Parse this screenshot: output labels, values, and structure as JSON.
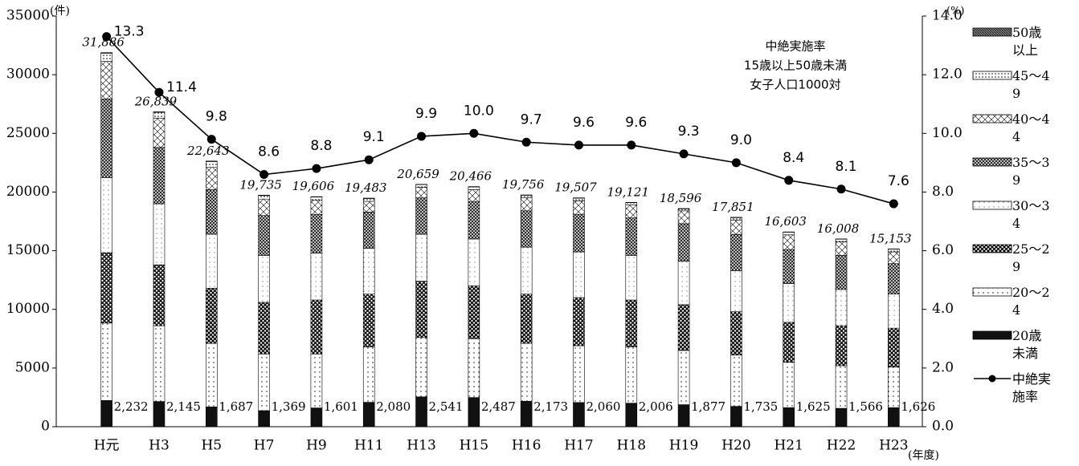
{
  "chart_data": {
    "type": "bar",
    "categories": [
      "H元",
      "H3",
      "H5",
      "H7",
      "H9",
      "H11",
      "H13",
      "H15",
      "H16",
      "H17",
      "H18",
      "H19",
      "H20",
      "H21",
      "H22",
      "H23"
    ],
    "x_label": "(年度)",
    "y_label": "(件)",
    "y2_label": "(%)",
    "annotation": [
      "中絶実施率",
      "15歳以上50歳未満",
      "女子人口1000対"
    ],
    "ylim": [
      0,
      35000
    ],
    "yticks": [
      0,
      5000,
      10000,
      15000,
      20000,
      25000,
      30000,
      35000
    ],
    "y2lim": [
      0,
      14
    ],
    "y2ticks": [
      {
        "value": 0,
        "label": "0.0"
      },
      {
        "value": 2,
        "label": "2.0"
      },
      {
        "value": 4,
        "label": "4.0"
      },
      {
        "value": 6,
        "label": "6.0"
      },
      {
        "value": 8,
        "label": "8.0"
      },
      {
        "value": 10,
        "label": "10.0"
      },
      {
        "value": 12,
        "label": "12.0"
      },
      {
        "value": 14,
        "label": "14.0"
      }
    ],
    "series": [
      {
        "name": "20歳未満",
        "color": "#111111",
        "values": [
          2232,
          2145,
          1687,
          1369,
          1601,
          2080,
          2541,
          2487,
          2173,
          2060,
          2006,
          1877,
          1735,
          1625,
          1566,
          1626
        ],
        "value_labels": [
          "2,232",
          "2,145",
          "1,687",
          "1,369",
          "1,601",
          "2,080",
          "2,541",
          "2,487",
          "2,173",
          "2,060",
          "2,006",
          "1,877",
          "1,735",
          "1,625",
          "1,566",
          "1,626"
        ]
      },
      {
        "name": "20～24",
        "color": "#ffffff",
        "values": [
          6600,
          6455,
          5413,
          4831,
          4599,
          4720,
          5059,
          5013,
          4927,
          4840,
          4794,
          4623,
          4365,
          3875,
          3634,
          3474
        ]
      },
      {
        "name": "25～29",
        "color": "#666666",
        "values": [
          6000,
          5200,
          4700,
          4400,
          4600,
          4500,
          4800,
          4500,
          4200,
          4100,
          4000,
          3900,
          3700,
          3400,
          3400,
          3300
        ]
      },
      {
        "name": "30～34",
        "color": "#f4f4f4",
        "values": [
          6400,
          5200,
          4600,
          4000,
          4000,
          3900,
          4000,
          4000,
          4000,
          3900,
          3800,
          3700,
          3500,
          3300,
          3100,
          2900
        ]
      },
      {
        "name": "35～39",
        "color": "#777777",
        "values": [
          6700,
          4800,
          3800,
          3400,
          3300,
          3100,
          3100,
          3200,
          3100,
          3200,
          3200,
          3200,
          3100,
          2900,
          2900,
          2600
        ]
      },
      {
        "name": "40～44",
        "color": "#dddddd",
        "values": [
          3200,
          2500,
          1900,
          1400,
          1200,
          900,
          900,
          1000,
          1100,
          1150,
          1100,
          1100,
          1200,
          1250,
          1150,
          1000
        ]
      },
      {
        "name": "45～49",
        "color": "#bbbbbb",
        "values": [
          700,
          500,
          500,
          300,
          270,
          250,
          230,
          240,
          230,
          230,
          200,
          170,
          220,
          230,
          230,
          230
        ]
      },
      {
        "name": "50歳以上",
        "color": "#444444",
        "values": [
          54,
          39,
          43,
          35,
          36,
          33,
          29,
          26,
          26,
          27,
          21,
          26,
          31,
          23,
          28,
          23
        ]
      },
      {
        "name": "中絶実施率",
        "type": "line",
        "axis": "y2",
        "color": "#000000",
        "values": [
          13.3,
          11.4,
          9.8,
          8.6,
          8.8,
          9.1,
          9.9,
          10.0,
          9.7,
          9.6,
          9.6,
          9.3,
          9.0,
          8.4,
          8.1,
          7.6
        ],
        "value_labels": [
          "13.3",
          "11.4",
          "9.8",
          "8.6",
          "8.8",
          "9.1",
          "9.9",
          "10.0",
          "9.7",
          "9.6",
          "9.6",
          "9.3",
          "9.0",
          "8.4",
          "8.1",
          "7.6"
        ]
      }
    ],
    "totals": [
      31886,
      26839,
      22643,
      19735,
      19606,
      19483,
      20659,
      20466,
      19756,
      19507,
      19121,
      18596,
      17851,
      16603,
      16008,
      15153
    ],
    "total_labels": [
      "31,886",
      "26,839",
      "22,643",
      "19,735",
      "19,606",
      "19,483",
      "20,659",
      "20,466",
      "19,756",
      "19,507",
      "19,121",
      "18,596",
      "17,851",
      "16,603",
      "16,008",
      "15,153"
    ]
  }
}
